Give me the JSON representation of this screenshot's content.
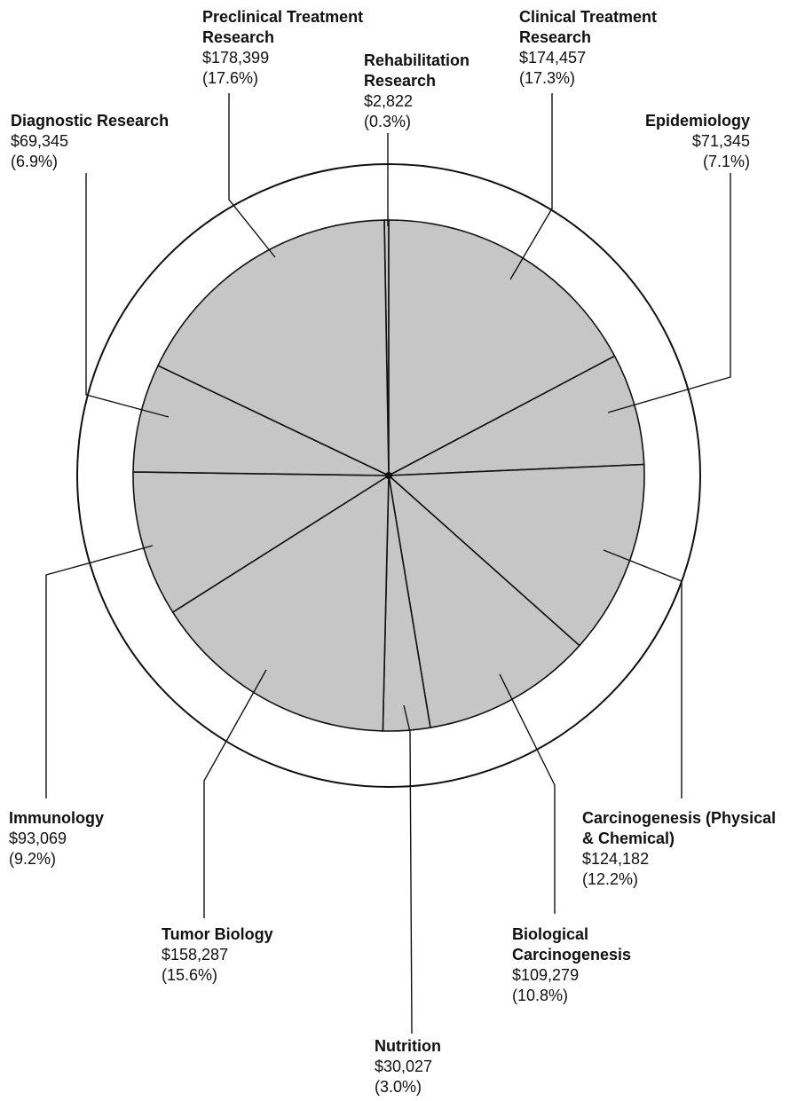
{
  "chart_data": {
    "type": "pie",
    "categories": [
      "Rehabilitation Research",
      "Clinical Treatment Research",
      "Epidemiology",
      "Carcinogenesis (Physical & Chemical)",
      "Biological Carcinogenesis",
      "Nutrition",
      "Tumor Biology",
      "Immunology",
      "Diagnostic Research",
      "Preclinical Treatment Research"
    ],
    "values": [
      2822,
      174457,
      71345,
      124182,
      109279,
      30027,
      158287,
      93069,
      69345,
      178399
    ],
    "value_labels": [
      "$2,822",
      "$174,457",
      "$71,345",
      "$124,182",
      "$109,279",
      "$30,027",
      "$158,287",
      "$93,069",
      "$69,345",
      "$178,399"
    ],
    "percents": [
      0.3,
      17.3,
      7.1,
      12.2,
      10.8,
      3.0,
      15.6,
      9.2,
      6.9,
      17.6
    ],
    "percent_labels": [
      "(0.3%)",
      "(17.3%)",
      "(7.1%)",
      "(12.2%)",
      "(10.8%)",
      "(3.0%)",
      "(15.6%)",
      "(9.2%)",
      "(6.9%)",
      "(17.6%)"
    ],
    "color": "#c6c6c6"
  }
}
